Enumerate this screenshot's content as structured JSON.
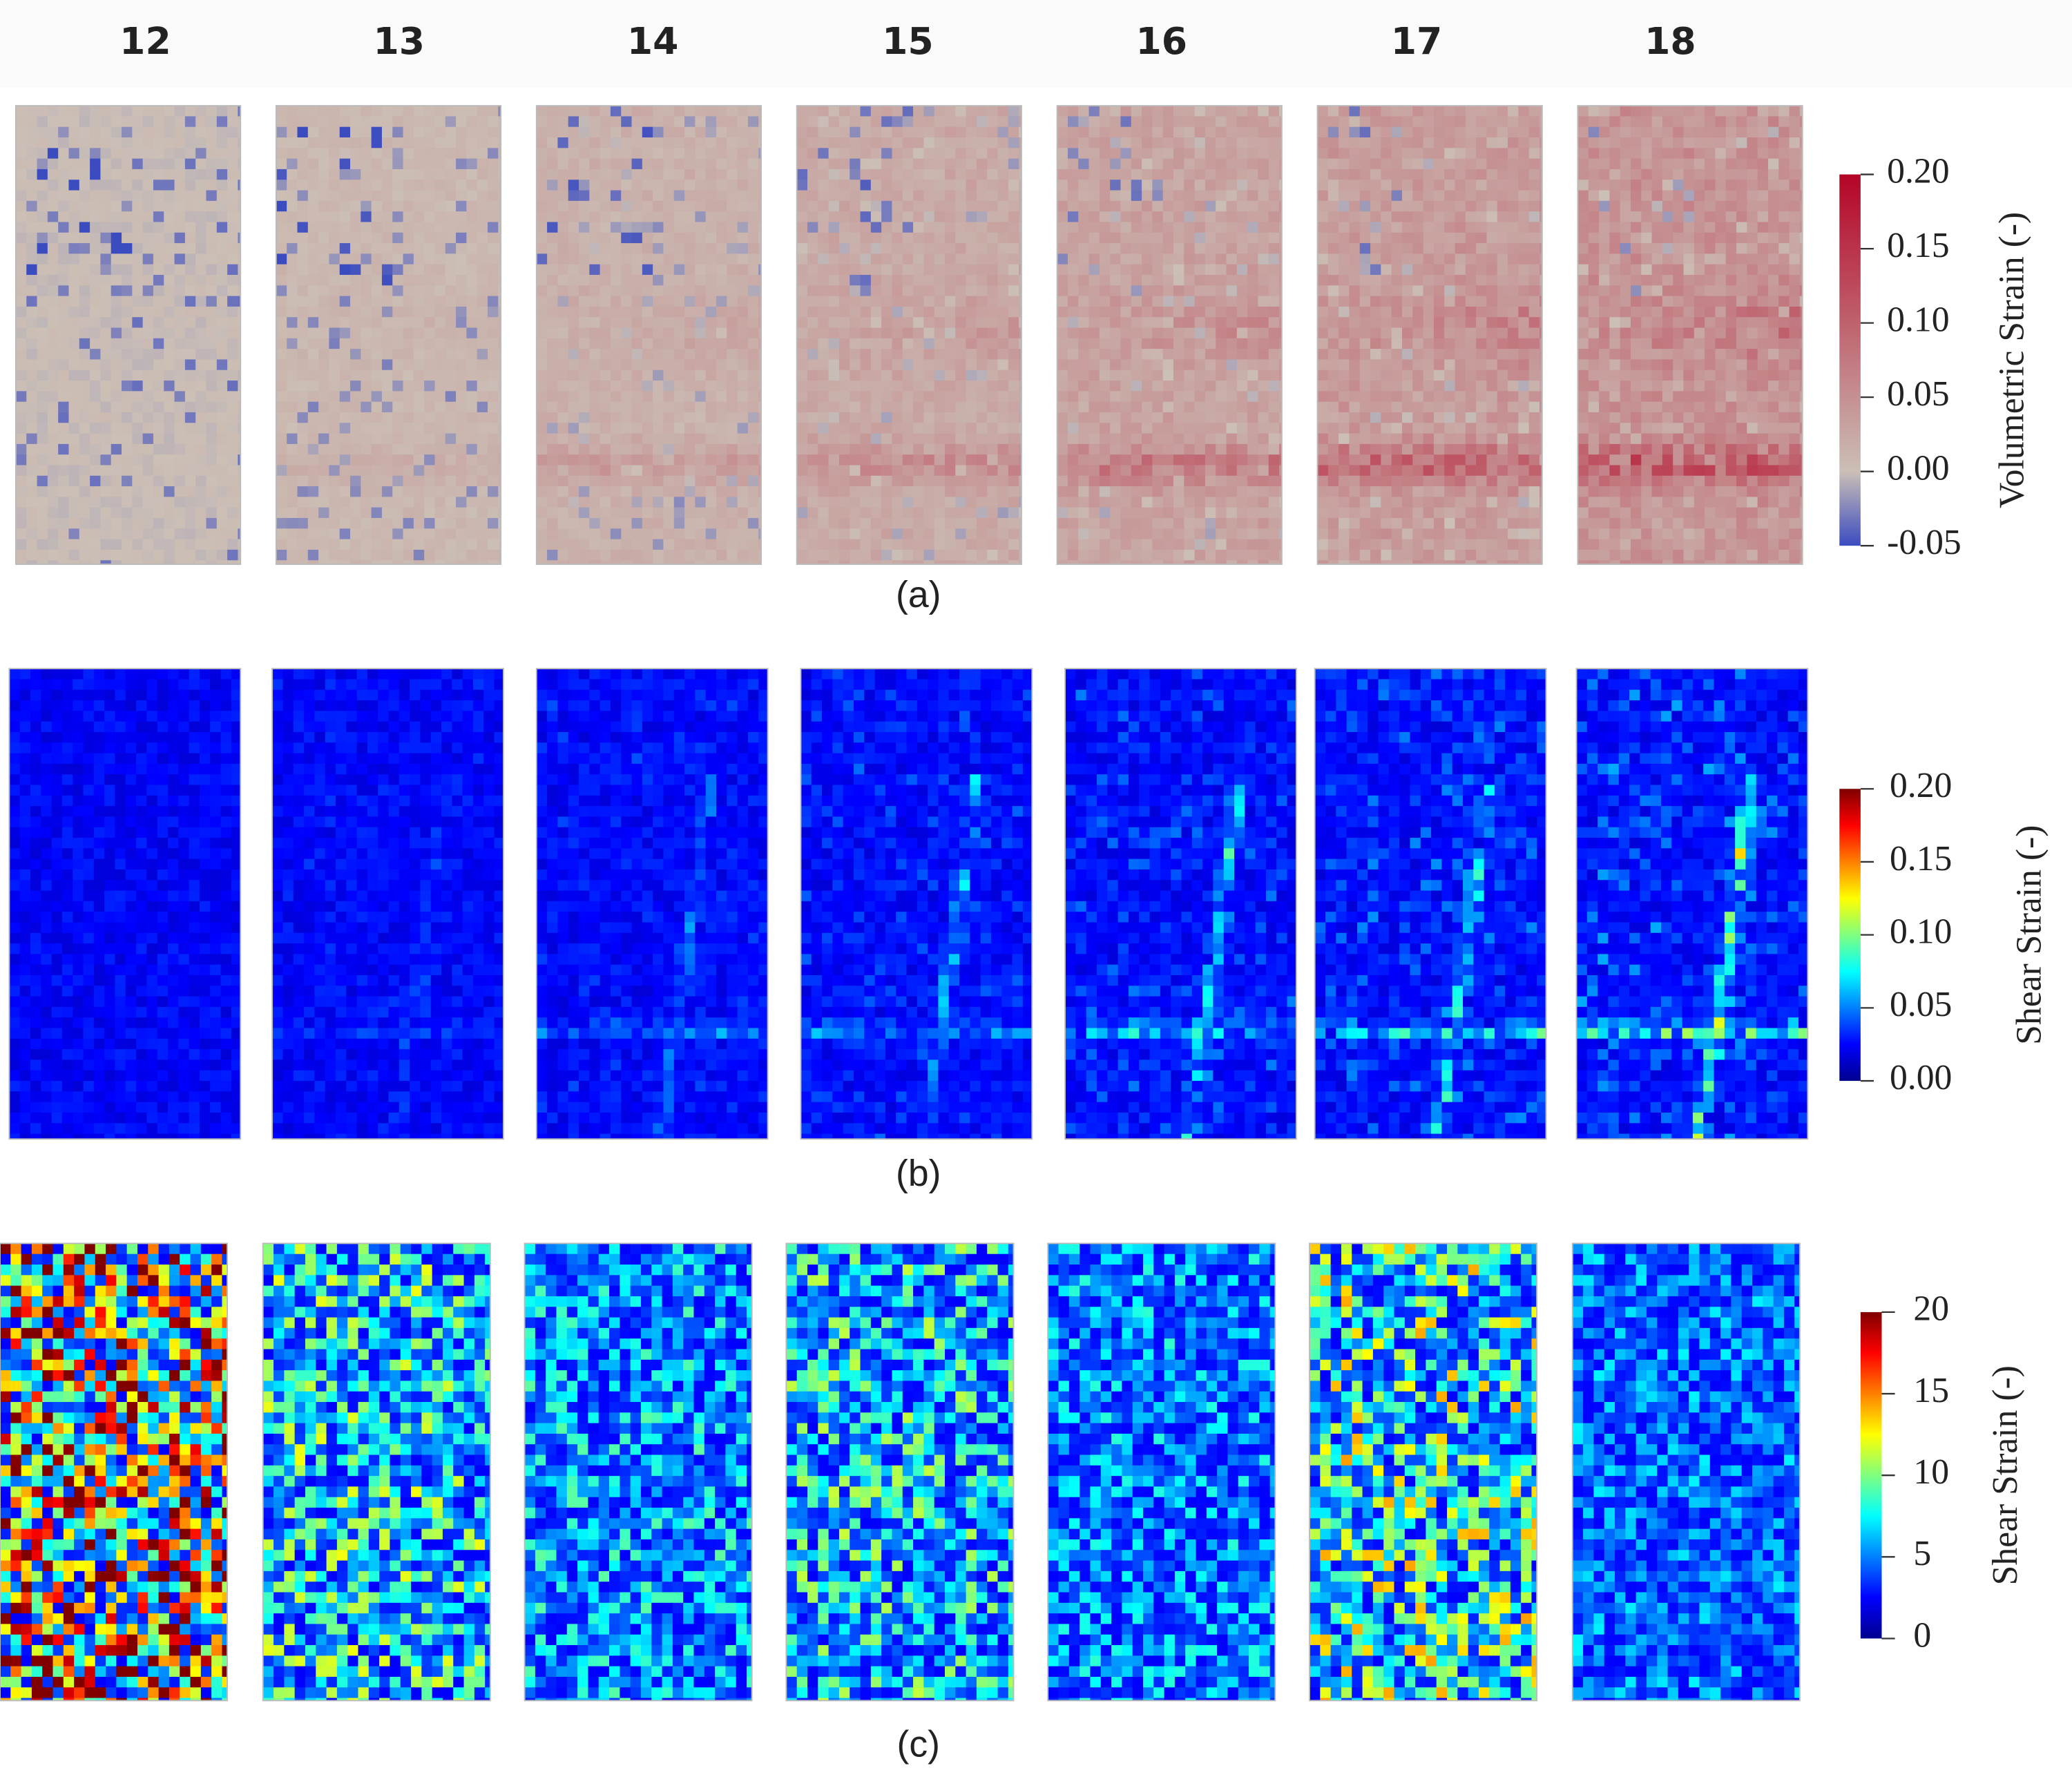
{
  "column_headers": [
    "12",
    "13",
    "14",
    "15",
    "16",
    "17",
    "18"
  ],
  "panels": [
    {
      "label": "(a)",
      "colorbar": {
        "title": "Volumetric Strain (-)",
        "ticks": [
          "0.20",
          "0.15",
          "0.10",
          "0.05",
          "0.00",
          "-0.05"
        ]
      }
    },
    {
      "label": "(b)",
      "colorbar": {
        "title": "Shear Strain (-)",
        "ticks": [
          "0.20",
          "0.15",
          "0.10",
          "0.05",
          "0.00"
        ]
      }
    },
    {
      "label": "(c)",
      "colorbar": {
        "title": "Shear Strain (-)",
        "ticks": [
          "20",
          "15",
          "10",
          "5",
          "0"
        ]
      }
    }
  ]
}
